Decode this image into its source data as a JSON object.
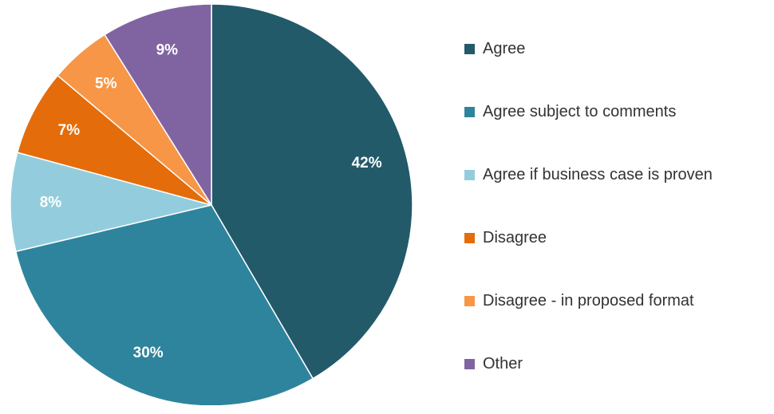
{
  "chart_data": {
    "type": "pie",
    "title": "",
    "start_angle": "12 o'clock",
    "direction": "clockwise",
    "legend_position": "right",
    "slices": [
      {
        "label": "Agree",
        "value": 42,
        "display": "42%",
        "color": "#225a6a"
      },
      {
        "label": "Agree subject to comments",
        "value": 30,
        "display": "30%",
        "color": "#2e849c"
      },
      {
        "label": "Agree if business case is proven",
        "value": 8,
        "display": "8%",
        "color": "#93cddd"
      },
      {
        "label": "Disagree",
        "value": 7,
        "display": "7%",
        "color": "#e46c0a"
      },
      {
        "label": "Disagree - in proposed format",
        "value": 5,
        "display": "5%",
        "color": "#f79646"
      },
      {
        "label": "Other",
        "value": 9,
        "display": "9%",
        "color": "#8064a2"
      }
    ]
  }
}
